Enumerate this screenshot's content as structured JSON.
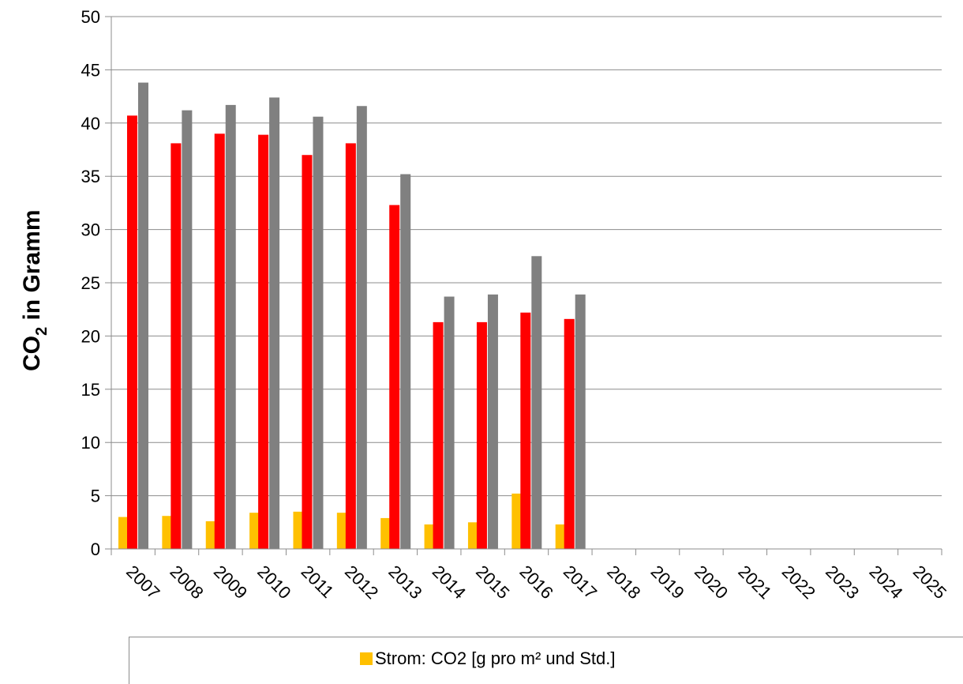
{
  "chart_data": {
    "type": "bar",
    "title": "",
    "ylabel_main": "CO",
    "ylabel_sub": "2",
    "ylabel_rest": " in Gramm",
    "xlabel": "",
    "ylim": [
      0,
      50
    ],
    "yticks": [
      0,
      5,
      10,
      15,
      20,
      25,
      30,
      35,
      40,
      45,
      50
    ],
    "grid": true,
    "categories": [
      "2007",
      "2008",
      "2009",
      "2010",
      "2011",
      "2012",
      "2013",
      "2014",
      "2015",
      "2016",
      "2017",
      "2018",
      "2019",
      "2020",
      "2021",
      "2022",
      "2023",
      "2024",
      "2025"
    ],
    "series": [
      {
        "name": "Strom: CO2 [g pro m² und Std.]",
        "color": "#ffc000",
        "values": [
          3.0,
          3.1,
          2.6,
          3.4,
          3.5,
          3.4,
          2.9,
          2.3,
          2.5,
          5.2,
          2.3,
          null,
          null,
          null,
          null,
          null,
          null,
          null,
          null
        ]
      },
      {
        "color": "#ff0000",
        "values": [
          40.7,
          38.1,
          39.0,
          38.9,
          37.0,
          38.1,
          32.3,
          21.3,
          21.3,
          22.2,
          21.6,
          null,
          null,
          null,
          null,
          null,
          null,
          null,
          null
        ]
      },
      {
        "color": "#808080",
        "values": [
          43.8,
          41.2,
          41.7,
          42.4,
          40.6,
          41.6,
          35.2,
          23.7,
          23.9,
          27.5,
          23.9,
          null,
          null,
          null,
          null,
          null,
          null,
          null,
          null
        ]
      }
    ],
    "legend_position": "bottom"
  }
}
